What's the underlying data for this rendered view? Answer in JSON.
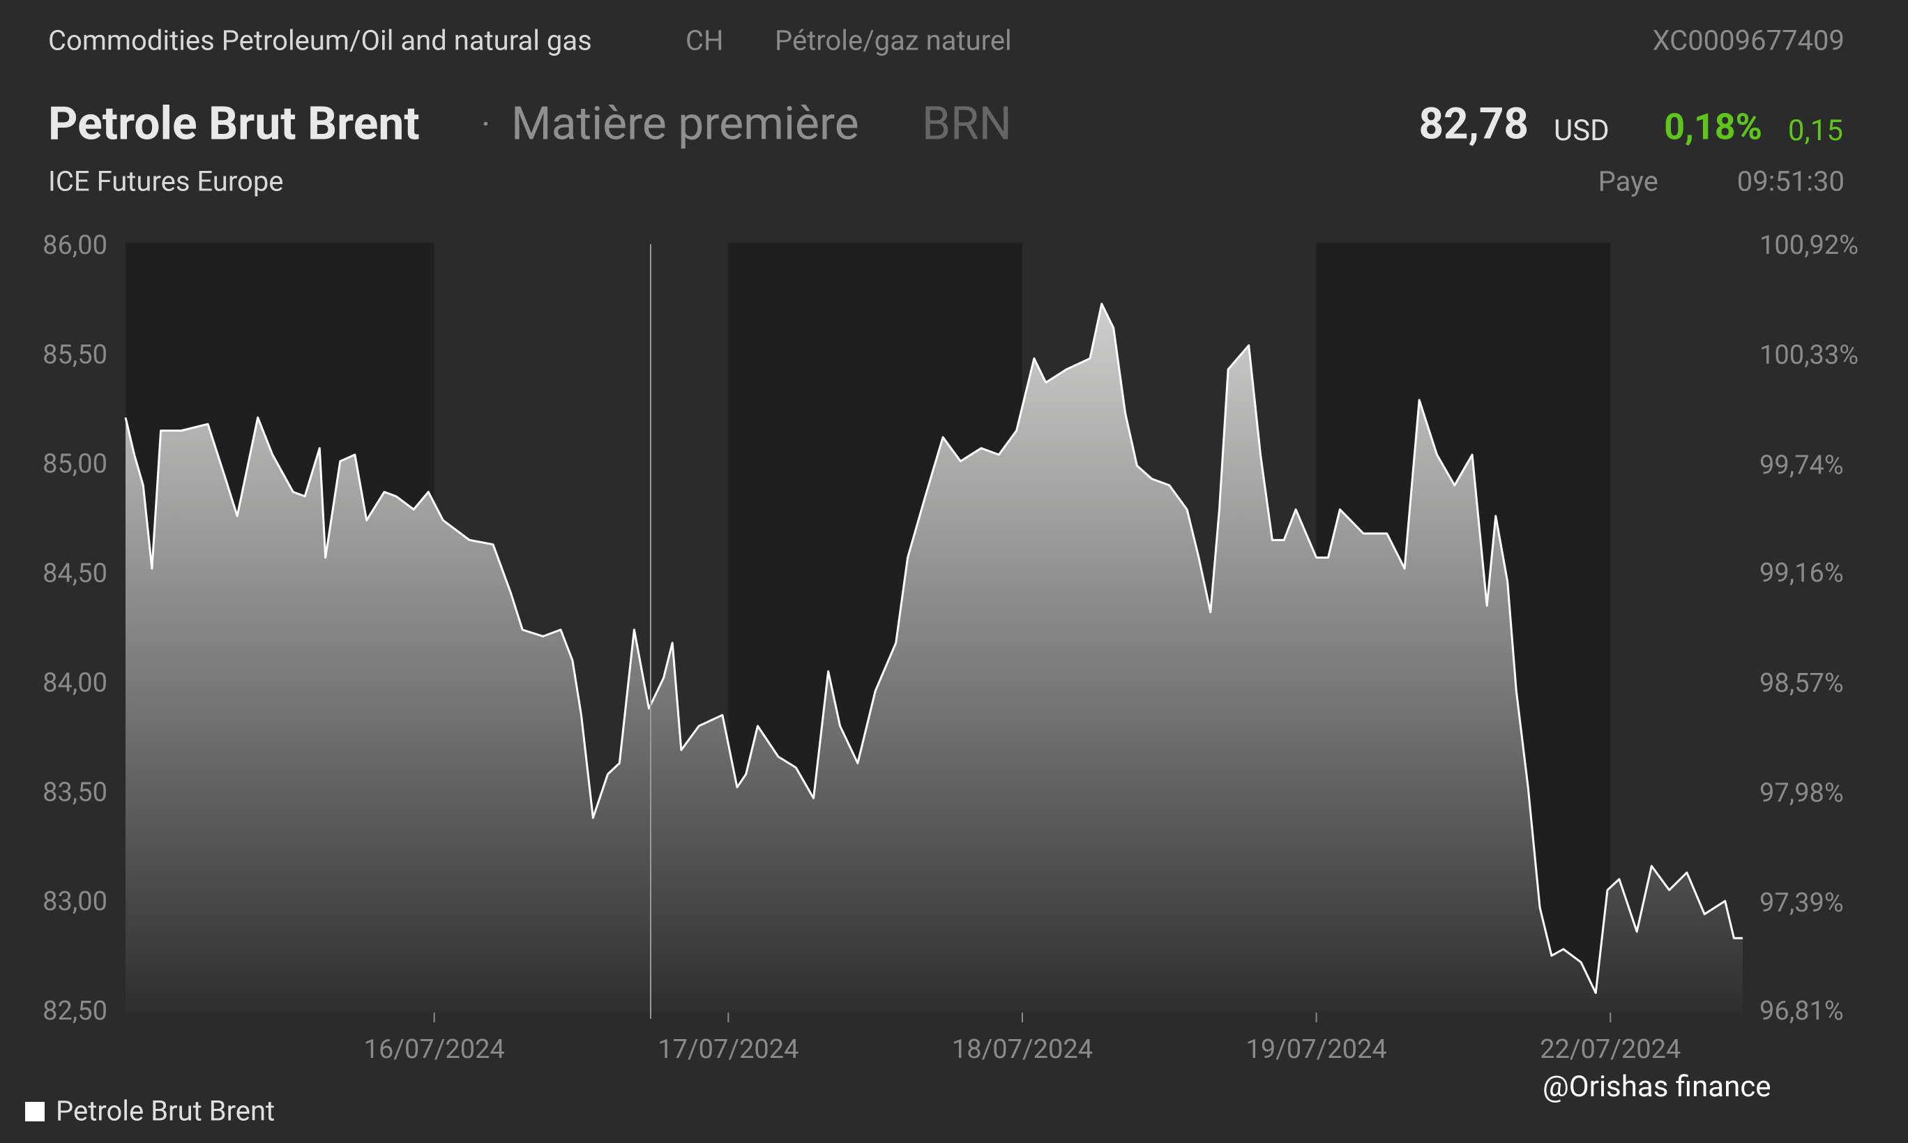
{
  "header": {
    "category": "Commodities Petroleum/Oil and natural gas",
    "country": "CH",
    "subcategory": "Pétrole/gaz naturel",
    "isin": "XC0009677409",
    "name": "Petrole Brut Brent",
    "separator": "·",
    "kind": "Matière première",
    "symbol": "BRN",
    "exchange": "ICE Futures Europe",
    "price": "82,78",
    "currency": "USD",
    "change_pct": "0,18%",
    "change": "0,15",
    "status": "Paye",
    "time": "09:51:30"
  },
  "watermark": "@Orishas finance",
  "chart_data": {
    "type": "area",
    "x": [
      -0.05,
      -0.02,
      0.01,
      0.04,
      0.07,
      0.14,
      0.23,
      0.29,
      0.33,
      0.4,
      0.45,
      0.52,
      0.56,
      0.61,
      0.63,
      0.68,
      0.73,
      0.77,
      0.83,
      0.87,
      0.93,
      0.98,
      1.03,
      1.12,
      1.2,
      1.26,
      1.3,
      1.37,
      1.43,
      1.47,
      1.5,
      1.54,
      1.59,
      1.63,
      1.68,
      1.73,
      1.78,
      1.81,
      1.84,
      1.9,
      1.98,
      2.03,
      2.06,
      2.1,
      2.17,
      2.23,
      2.29,
      2.34,
      2.38,
      2.44,
      2.5,
      2.57,
      2.61,
      2.67,
      2.73,
      2.79,
      2.86,
      2.92,
      2.98,
      3.04,
      3.08,
      3.15,
      3.23,
      3.27,
      3.31,
      3.35,
      3.39,
      3.44,
      3.5,
      3.56,
      3.6,
      3.64,
      3.67,
      3.7,
      3.77,
      3.81,
      3.85,
      3.89,
      3.93,
      4.0,
      4.04,
      4.08,
      4.16,
      4.24,
      4.3,
      4.35,
      4.41,
      4.47,
      4.53,
      4.58,
      4.61,
      4.65,
      4.68,
      4.72,
      4.76,
      4.8,
      4.84,
      4.9,
      4.95,
      4.99,
      5.03,
      5.09,
      5.14,
      5.2,
      5.26,
      5.32,
      5.39,
      5.42,
      5.45
    ],
    "series": [
      {
        "name": "Petrole Brut Brent",
        "color": "#ffffff",
        "values": [
          85.22,
          85.05,
          84.91,
          84.53,
          85.16,
          85.16,
          85.19,
          84.94,
          84.77,
          85.22,
          85.05,
          84.88,
          84.86,
          85.08,
          84.58,
          85.02,
          85.05,
          84.75,
          84.88,
          84.86,
          84.8,
          84.88,
          84.75,
          84.66,
          84.64,
          84.42,
          84.25,
          84.22,
          84.25,
          84.11,
          83.86,
          83.39,
          83.59,
          83.64,
          84.25,
          83.89,
          84.03,
          84.19,
          83.7,
          83.81,
          83.86,
          83.53,
          83.59,
          83.81,
          83.67,
          83.62,
          83.48,
          84.06,
          83.81,
          83.64,
          83.97,
          84.19,
          84.58,
          84.86,
          85.13,
          85.02,
          85.08,
          85.05,
          85.16,
          85.49,
          85.38,
          85.44,
          85.49,
          85.74,
          85.63,
          85.24,
          85.0,
          84.94,
          84.91,
          84.8,
          84.58,
          84.33,
          84.8,
          85.44,
          85.55,
          85.05,
          84.66,
          84.66,
          84.8,
          84.58,
          84.58,
          84.8,
          84.69,
          84.69,
          84.53,
          85.3,
          85.05,
          84.91,
          85.05,
          84.36,
          84.77,
          84.47,
          83.97,
          83.53,
          82.98,
          82.76,
          82.79,
          82.73,
          82.59,
          83.06,
          83.11,
          82.87,
          83.17,
          83.06,
          83.14,
          82.95,
          83.01,
          82.84,
          82.84
        ]
      }
    ],
    "xlim": [
      -0.05,
      5.45
    ],
    "xticks": [
      {
        "value": 1,
        "label": "16/07/2024"
      },
      {
        "value": 2,
        "label": "17/07/2024"
      },
      {
        "value": 3,
        "label": "18/07/2024"
      },
      {
        "value": 4,
        "label": "19/07/2024"
      },
      {
        "value": 5,
        "label": "22/07/2024"
      }
    ],
    "ylim": [
      82.5,
      86
    ],
    "yticks": [
      {
        "value": 82.5,
        "label": "82,50"
      },
      {
        "value": 83,
        "label": "83,00"
      },
      {
        "value": 83.5,
        "label": "83,50"
      },
      {
        "value": 84,
        "label": "84,00"
      },
      {
        "value": 84.5,
        "label": "84,50"
      },
      {
        "value": 85,
        "label": "85,00"
      },
      {
        "value": 85.5,
        "label": "85,50"
      },
      {
        "value": 86,
        "label": "86,00"
      }
    ],
    "y2lim": [
      96.81,
      100.92
    ],
    "y2ticks": [
      {
        "value": 96.81,
        "label": "96,81%"
      },
      {
        "value": 97.39,
        "label": "97,39%"
      },
      {
        "value": 97.98,
        "label": "97,98%"
      },
      {
        "value": 98.57,
        "label": "98,57%"
      },
      {
        "value": 99.16,
        "label": "99,16%"
      },
      {
        "value": 99.74,
        "label": "99,74%"
      },
      {
        "value": 100.33,
        "label": "100,33%"
      },
      {
        "value": 100.92,
        "label": "100,92%"
      }
    ]
  }
}
